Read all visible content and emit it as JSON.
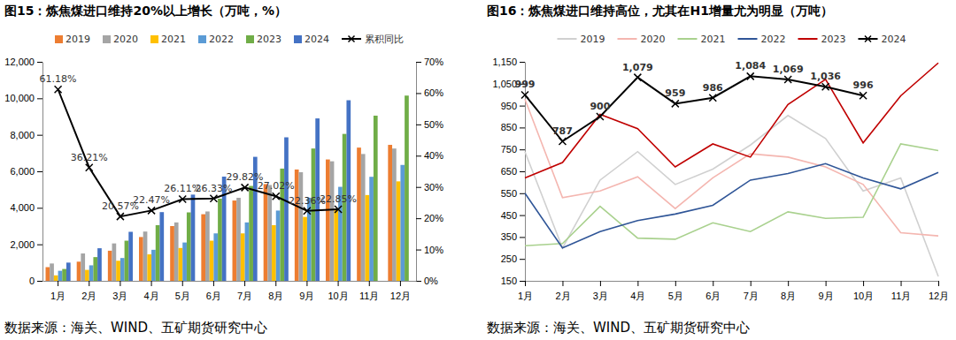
{
  "chart_data": [
    {
      "type": "bar",
      "title": "图15：炼焦煤进口维持20%以上增长（万吨，%）",
      "source": "数据来源：海关、WIND、五矿期货研究中心",
      "categories": [
        "1月",
        "2月",
        "3月",
        "4月",
        "5月",
        "6月",
        "7月",
        "8月",
        "9月",
        "10月",
        "11月",
        "12月"
      ],
      "series": [
        {
          "name": "2019",
          "color": "#ED7D31",
          "values": [
            750,
            1050,
            1650,
            2400,
            3000,
            3650,
            4400,
            5300,
            6100,
            6650,
            7300,
            7450
          ]
        },
        {
          "name": "2020",
          "color": "#A5A5A5",
          "values": [
            950,
            1500,
            2050,
            2700,
            3200,
            3800,
            4550,
            5250,
            5950,
            6550,
            6950,
            7250
          ]
        },
        {
          "name": "2021",
          "color": "#FFC000",
          "values": [
            300,
            600,
            1100,
            1450,
            1800,
            2200,
            2600,
            3050,
            3500,
            3950,
            4700,
            5450
          ]
        },
        {
          "name": "2022",
          "color": "#5B9BD5",
          "values": [
            550,
            850,
            1250,
            1700,
            2100,
            2600,
            3200,
            3850,
            4550,
            5150,
            5700,
            6350
          ]
        },
        {
          "name": "2023",
          "color": "#70AD47",
          "values": [
            650,
            1300,
            2200,
            3050,
            3750,
            4500,
            5200,
            6150,
            7250,
            8050,
            9050,
            10150
          ]
        },
        {
          "name": "2024",
          "color": "#4472C4",
          "values": [
            999,
            1786,
            2686,
            3765,
            4724,
            5710,
            6794,
            7863,
            8899,
            9895,
            null,
            null
          ]
        },
        {
          "name": "累积同比",
          "type": "line",
          "axis": "y2",
          "color": "#000000",
          "marker": "x",
          "data_labels": true,
          "values": [
            61.18,
            36.21,
            20.57,
            22.47,
            26.11,
            26.33,
            29.82,
            27.02,
            22.36,
            22.85,
            null,
            null
          ],
          "value_labels": [
            "61.18%",
            "36.21%",
            "20.57%",
            "22.47%",
            "26.11%",
            "26.33%",
            "29.82%",
            "27.02%",
            "22.36%",
            "22.85%",
            null,
            null
          ]
        }
      ],
      "ylim": [
        0,
        12000
      ],
      "yticks": [
        0,
        {
          "value": 2000,
          "label": "2,000"
        },
        {
          "value": 4000,
          "label": "4,000"
        },
        {
          "value": 6000,
          "label": "6,000"
        },
        {
          "value": 8000,
          "label": "8,000"
        },
        {
          "value": 10000,
          "label": "10,000"
        },
        {
          "value": 12000,
          "label": "12,000"
        }
      ],
      "y2lim": [
        0,
        70
      ],
      "y2ticks": [
        {
          "value": 0,
          "label": "0%"
        },
        {
          "value": 10,
          "label": "10%"
        },
        {
          "value": 20,
          "label": "20%"
        },
        {
          "value": 30,
          "label": "30%"
        },
        {
          "value": 40,
          "label": "40%"
        },
        {
          "value": 50,
          "label": "50%"
        },
        {
          "value": 60,
          "label": "60%"
        },
        {
          "value": 70,
          "label": "70%"
        }
      ],
      "legend": "top"
    },
    {
      "type": "line",
      "title": "图16：炼焦煤进口维持高位，尤其在H1增量尤为明显（万吨）",
      "source": "数据来源：海关、WIND、五矿期货研究中心",
      "categories": [
        "1月",
        "2月",
        "3月",
        "4月",
        "5月",
        "6月",
        "7月",
        "8月",
        "9月",
        "10月",
        "11月",
        "12月"
      ],
      "series": [
        {
          "name": "2019",
          "color": "#D0D0D0",
          "values": [
            740,
            300,
            610,
            740,
            590,
            660,
            770,
            905,
            800,
            560,
            620,
            170
          ]
        },
        {
          "name": "2020",
          "color": "#F4B6B0",
          "values": [
            980,
            530,
            560,
            625,
            480,
            620,
            730,
            715,
            670,
            590,
            370,
            355
          ]
        },
        {
          "name": "2021",
          "color": "#A9D18E",
          "values": [
            310,
            320,
            490,
            345,
            340,
            415,
            375,
            465,
            435,
            440,
            775,
            745
          ]
        },
        {
          "name": "2022",
          "color": "#2F5597",
          "values": [
            550,
            300,
            375,
            425,
            455,
            495,
            610,
            640,
            685,
            620,
            570,
            645
          ]
        },
        {
          "name": "2023",
          "color": "#C00000",
          "values": [
            620,
            690,
            910,
            845,
            670,
            775,
            715,
            955,
            1070,
            780,
            995,
            1145
          ]
        },
        {
          "name": "2024",
          "color": "#000000",
          "marker": "x",
          "data_labels": true,
          "values": [
            999,
            787,
            900,
            1079,
            959,
            986,
            1084,
            1069,
            1036,
            996,
            null,
            null
          ],
          "value_labels": [
            "999",
            "787",
            "900",
            "1,079",
            "959",
            "986",
            "1,084",
            "1,069",
            "1,036",
            "996",
            null,
            null
          ]
        }
      ],
      "ylim": [
        150,
        1150
      ],
      "yticks": [
        150,
        250,
        350,
        450,
        550,
        650,
        750,
        850,
        950,
        {
          "value": 1050,
          "label": "1,050"
        },
        {
          "value": 1150,
          "label": "1,150"
        }
      ],
      "legend": "top"
    }
  ]
}
